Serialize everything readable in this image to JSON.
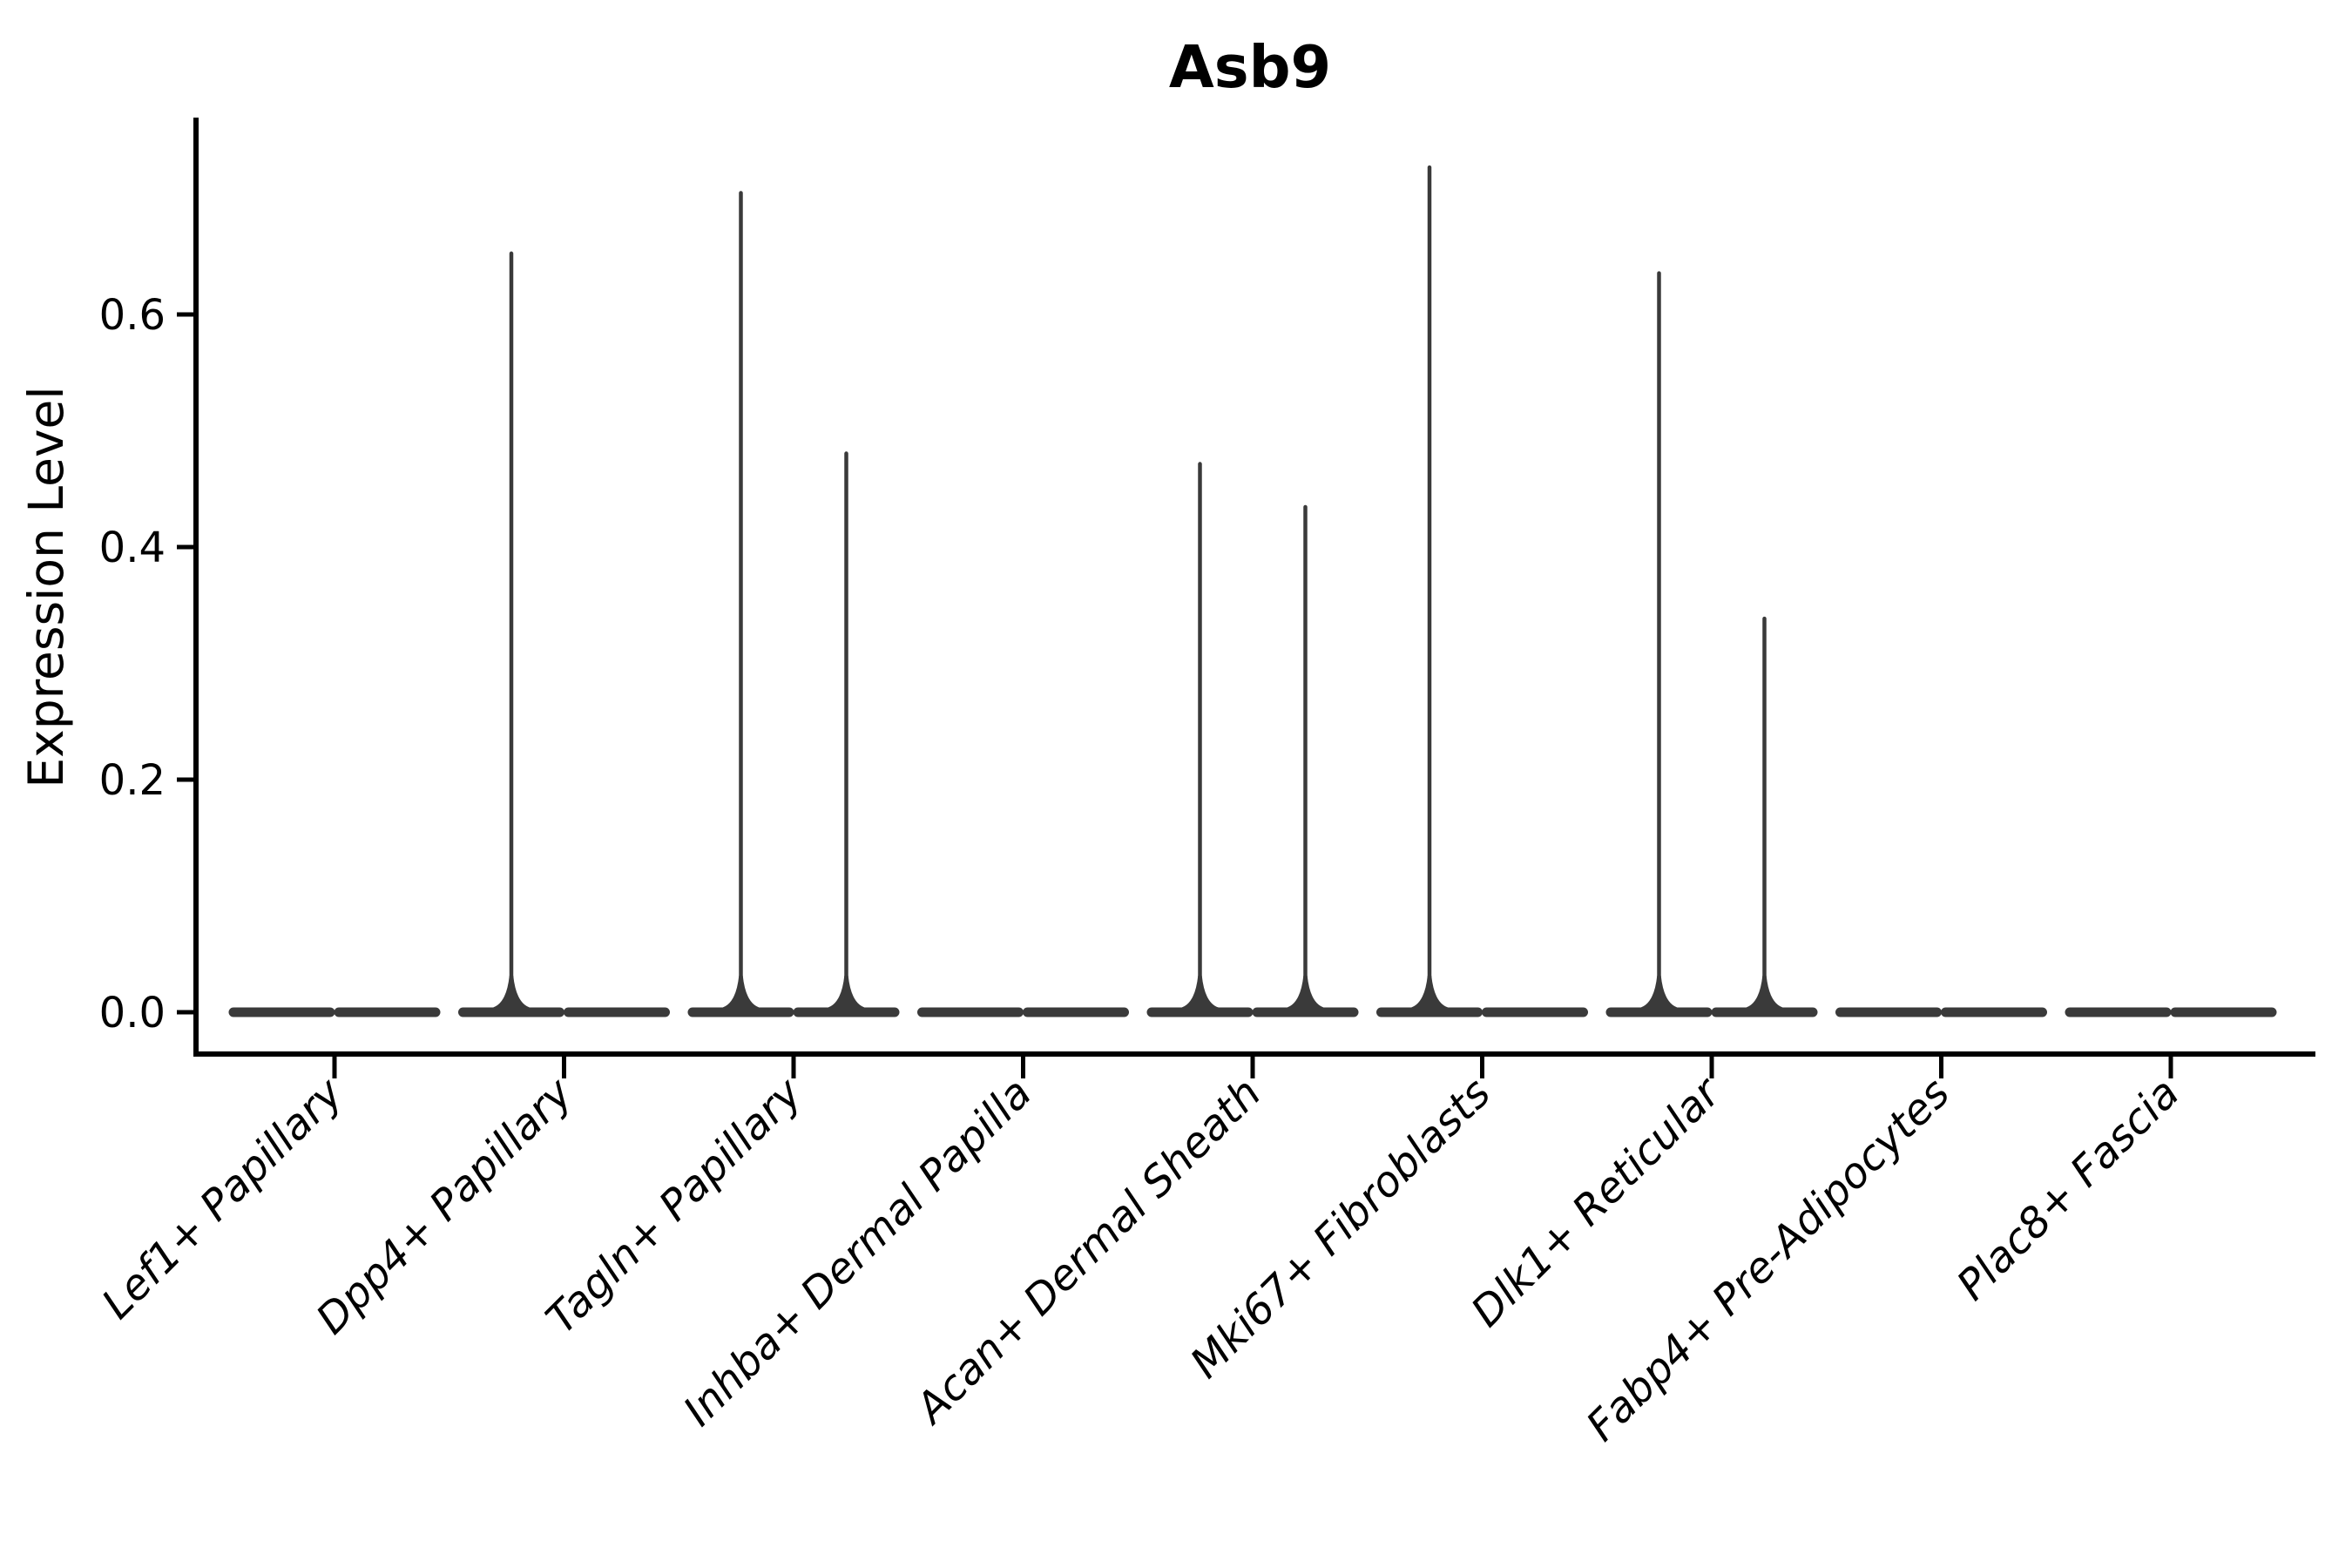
{
  "chart_data": {
    "type": "violin",
    "title": "Asb9",
    "ylabel": "Expression Level",
    "xlabel": "",
    "categories": [
      "Lef1+ Papillary",
      "Dpp4+ Papillary",
      "Tagln+ Papillary",
      "Inhba+ Dermal Papilla",
      "Acan+ Dermal Sheath",
      "Mki67+ Fibroblasts",
      "Dlk1+ Reticular",
      "Fabp4+ Pre-Adipocytes",
      "Plac8+ Fascia"
    ],
    "groups_per_category": 2,
    "series": [
      {
        "name": "left-subviolin",
        "max_values": [
          0,
          0.654,
          0.706,
          0,
          0.473,
          0.728,
          0.637,
          0,
          0
        ]
      },
      {
        "name": "right-subviolin",
        "max_values": [
          0,
          0,
          0.482,
          0,
          0.436,
          0,
          0.34,
          0,
          0
        ]
      }
    ],
    "baseline_value": 0.0,
    "y_ticks": [
      0.0,
      0.2,
      0.4,
      0.6
    ],
    "y_tick_labels": [
      "0.0",
      "0.2",
      "0.4",
      "0.6"
    ],
    "ylim": [
      -0.036,
      0.767
    ],
    "grid": false,
    "legend_position": "none",
    "violin_color": "#3a3a3a",
    "axis_color": "#000000",
    "background_color": "#ffffff"
  }
}
